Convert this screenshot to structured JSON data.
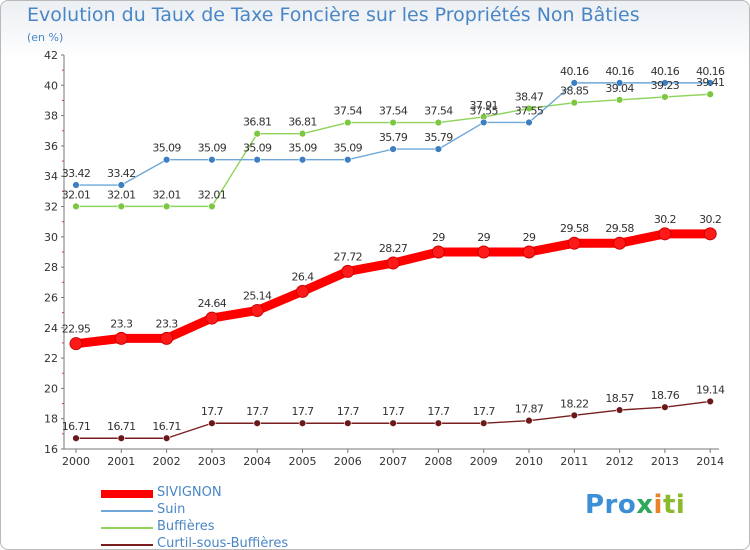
{
  "title": "Evolution du Taux de Taxe Foncière sur les Propriétés Non Bâties",
  "unit": "(en %)",
  "logo": {
    "part1": "Pro",
    "part2": "x",
    "part3": "i",
    "part4": "ti"
  },
  "colors": {
    "sivignon": "#ff0000",
    "suin": "#6fa8d8",
    "buffieres": "#8fd35a",
    "curtil": "#7a1f1f",
    "axis_text": "#333333",
    "accent": "#4a86c5"
  },
  "chart_data": {
    "type": "line",
    "x": [
      "2000",
      "2001",
      "2002",
      "2003",
      "2004",
      "2005",
      "2006",
      "2007",
      "2008",
      "2009",
      "2010",
      "2011",
      "2012",
      "2013",
      "2014"
    ],
    "ylim": [
      16,
      42
    ],
    "yticks": [
      "16",
      "18",
      "20",
      "22",
      "24",
      "26",
      "28",
      "30",
      "32",
      "34",
      "36",
      "38",
      "40",
      "42"
    ],
    "grid": false,
    "legend_position": "bottom-left",
    "series": [
      {
        "key": "sivignon",
        "name": "SIVIGNON",
        "values": [
          22.95,
          23.3,
          23.3,
          24.64,
          25.14,
          26.4,
          27.72,
          28.27,
          29,
          29,
          29,
          29.58,
          29.58,
          30.2,
          30.2
        ],
        "labels": [
          "22.95",
          "23.3",
          "23.3",
          "24.64",
          "25.14",
          "26.4",
          "27.72",
          "28.27",
          "29",
          "29",
          "29",
          "29.58",
          "29.58",
          "30.2",
          "30.2"
        ]
      },
      {
        "key": "suin",
        "name": "Suin",
        "values": [
          33.42,
          33.42,
          35.09,
          35.09,
          35.09,
          35.09,
          35.09,
          35.79,
          35.79,
          37.55,
          37.55,
          40.16,
          40.16,
          40.16,
          40.16
        ],
        "labels": [
          "33.42",
          "33.42",
          "35.09",
          "35.09",
          "35.09",
          "35.09",
          "35.09",
          "35.79",
          "35.79",
          "37.55",
          "37.55",
          "40.16",
          "40.16",
          "40.16",
          "40.16"
        ]
      },
      {
        "key": "buffieres",
        "name": "Buffières",
        "values": [
          32.01,
          32.01,
          32.01,
          32.01,
          36.81,
          36.81,
          37.54,
          37.54,
          37.54,
          37.91,
          38.47,
          38.85,
          39.04,
          39.23,
          39.41
        ],
        "labels": [
          "32.01",
          "32.01",
          "32.01",
          "32.01",
          "36.81",
          "36.81",
          "37.54",
          "37.54",
          "37.54",
          "37.91",
          "38.47",
          "38.85",
          "39.04",
          "39.23",
          "39.41"
        ]
      },
      {
        "key": "curtil",
        "name": "Curtil-sous-Buffières",
        "values": [
          16.71,
          16.71,
          16.71,
          17.7,
          17.7,
          17.7,
          17.7,
          17.7,
          17.7,
          17.7,
          17.87,
          18.22,
          18.57,
          18.76,
          19.14
        ],
        "labels": [
          "16.71",
          "16.71",
          "16.71",
          "17.7",
          "17.7",
          "17.7",
          "17.7",
          "17.7",
          "17.7",
          "17.7",
          "17.87",
          "18.22",
          "18.57",
          "18.76",
          "19.14"
        ]
      }
    ]
  }
}
